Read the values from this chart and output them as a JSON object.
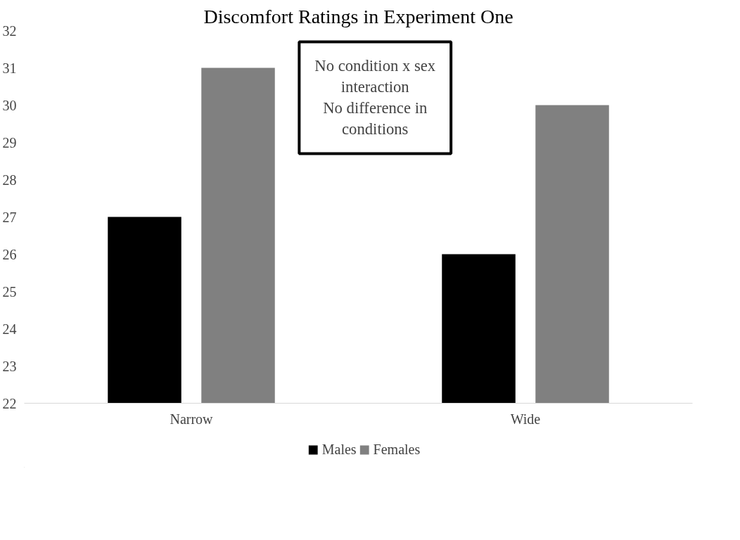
{
  "chart_data": {
    "type": "bar",
    "title": "Discomfort Ratings in Experiment One",
    "categories": [
      "Narrow",
      "Wide"
    ],
    "series": [
      {
        "name": "Males",
        "color": "#000000",
        "values": [
          27,
          26
        ]
      },
      {
        "name": "Females",
        "color": "#808080",
        "values": [
          31,
          30
        ]
      }
    ],
    "ylim": [
      22,
      32
    ],
    "yticks": [
      22,
      23,
      24,
      25,
      26,
      27,
      28,
      29,
      30,
      31,
      32
    ],
    "grid": false,
    "legend": "bottom",
    "annotations": [
      "No condition x sex\ninteraction\nNo difference in\nconditions"
    ]
  }
}
